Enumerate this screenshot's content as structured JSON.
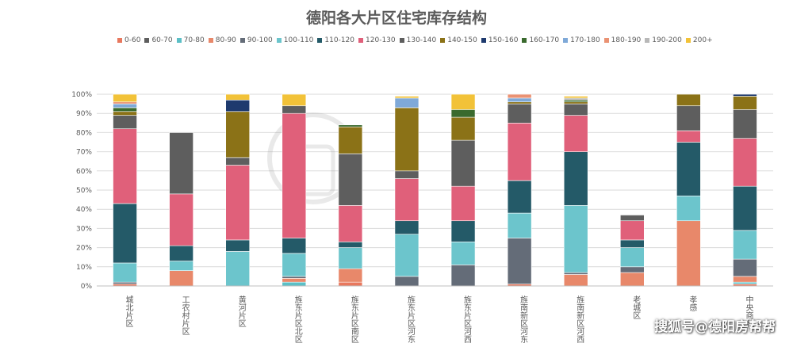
{
  "chart_data": {
    "type": "bar",
    "stacked": true,
    "normalized": true,
    "title": "德阳各大片区住宅库存结构",
    "categories": [
      "城北片区",
      "工农村片区",
      "黄河片区",
      "旌东片区北区",
      "旌东片区南区",
      "旌东片区河东",
      "旌东片区河西",
      "旌南新区河东",
      "旌南新区河西",
      "老城区",
      "孝感",
      "中央商务"
    ],
    "yticks": [
      "0%",
      "10%",
      "20%",
      "30%",
      "40%",
      "50%",
      "60%",
      "70%",
      "80%",
      "90%",
      "100%"
    ],
    "ylim": [
      0,
      100
    ],
    "legend_position": "top",
    "series": [
      {
        "name": "0-60",
        "color": "#E8785E",
        "values": [
          1,
          0,
          0,
          0,
          2,
          0,
          0,
          1,
          0,
          0,
          0,
          1
        ]
      },
      {
        "name": "60-70",
        "color": "#5E5E5E",
        "values": [
          0,
          0,
          0,
          0,
          0,
          0,
          0,
          0,
          0,
          0,
          0,
          0
        ]
      },
      {
        "name": "70-80",
        "color": "#5CBFC6",
        "values": [
          0,
          0,
          0,
          2,
          0,
          0,
          0,
          0,
          0,
          0,
          0,
          1
        ]
      },
      {
        "name": "80-90",
        "color": "#E8886A",
        "values": [
          0,
          8,
          0,
          2,
          7,
          0,
          0,
          0,
          6,
          7,
          34,
          3
        ]
      },
      {
        "name": "90-100",
        "color": "#646C78",
        "values": [
          1,
          0,
          0,
          1,
          0,
          5,
          11,
          24,
          1,
          3,
          0,
          9
        ]
      },
      {
        "name": "100-110",
        "color": "#6CC5CC",
        "values": [
          10,
          5,
          18,
          12,
          11,
          22,
          12,
          13,
          35,
          10,
          13,
          15
        ]
      },
      {
        "name": "110-120",
        "color": "#245A68",
        "values": [
          31,
          8,
          6,
          8,
          3,
          7,
          11,
          17,
          28,
          4,
          28,
          23
        ]
      },
      {
        "name": "120-130",
        "color": "#E0607A",
        "values": [
          39,
          27,
          39,
          65,
          19,
          22,
          18,
          30,
          19,
          10,
          6,
          25
        ]
      },
      {
        "name": "130-140",
        "color": "#5E5E5E",
        "values": [
          7,
          32,
          4,
          4,
          27,
          4,
          24,
          10,
          6,
          3,
          13,
          15
        ]
      },
      {
        "name": "140-150",
        "color": "#8B7217",
        "values": [
          2,
          0,
          24,
          0,
          14,
          33,
          12,
          1,
          1,
          0,
          6,
          7
        ]
      },
      {
        "name": "150-160",
        "color": "#1E3A6E",
        "values": [
          0,
          0,
          6,
          0,
          0,
          0,
          0,
          0,
          0,
          0,
          0,
          1
        ]
      },
      {
        "name": "160-170",
        "color": "#3A6A2E",
        "values": [
          2,
          0,
          0,
          0,
          1,
          0,
          4,
          0,
          1,
          0,
          0,
          0
        ]
      },
      {
        "name": "170-180",
        "color": "#7FA9D8",
        "values": [
          2,
          0,
          0,
          0,
          0,
          5,
          0,
          2,
          0,
          0,
          0,
          0
        ]
      },
      {
        "name": "180-190",
        "color": "#EA9273",
        "values": [
          1,
          0,
          0,
          0,
          0,
          0,
          0,
          2,
          0,
          0,
          0,
          0
        ]
      },
      {
        "name": "190-200",
        "color": "#B8B8B8",
        "values": [
          0,
          0,
          0,
          0,
          0,
          0,
          0,
          0,
          1,
          0,
          0,
          0
        ]
      },
      {
        "name": "200+",
        "color": "#F2C238",
        "values": [
          4,
          0,
          3,
          6,
          0,
          1,
          8,
          0,
          1,
          0,
          0,
          0
        ]
      }
    ]
  },
  "credit": "搜狐号@德阳房帮帮"
}
